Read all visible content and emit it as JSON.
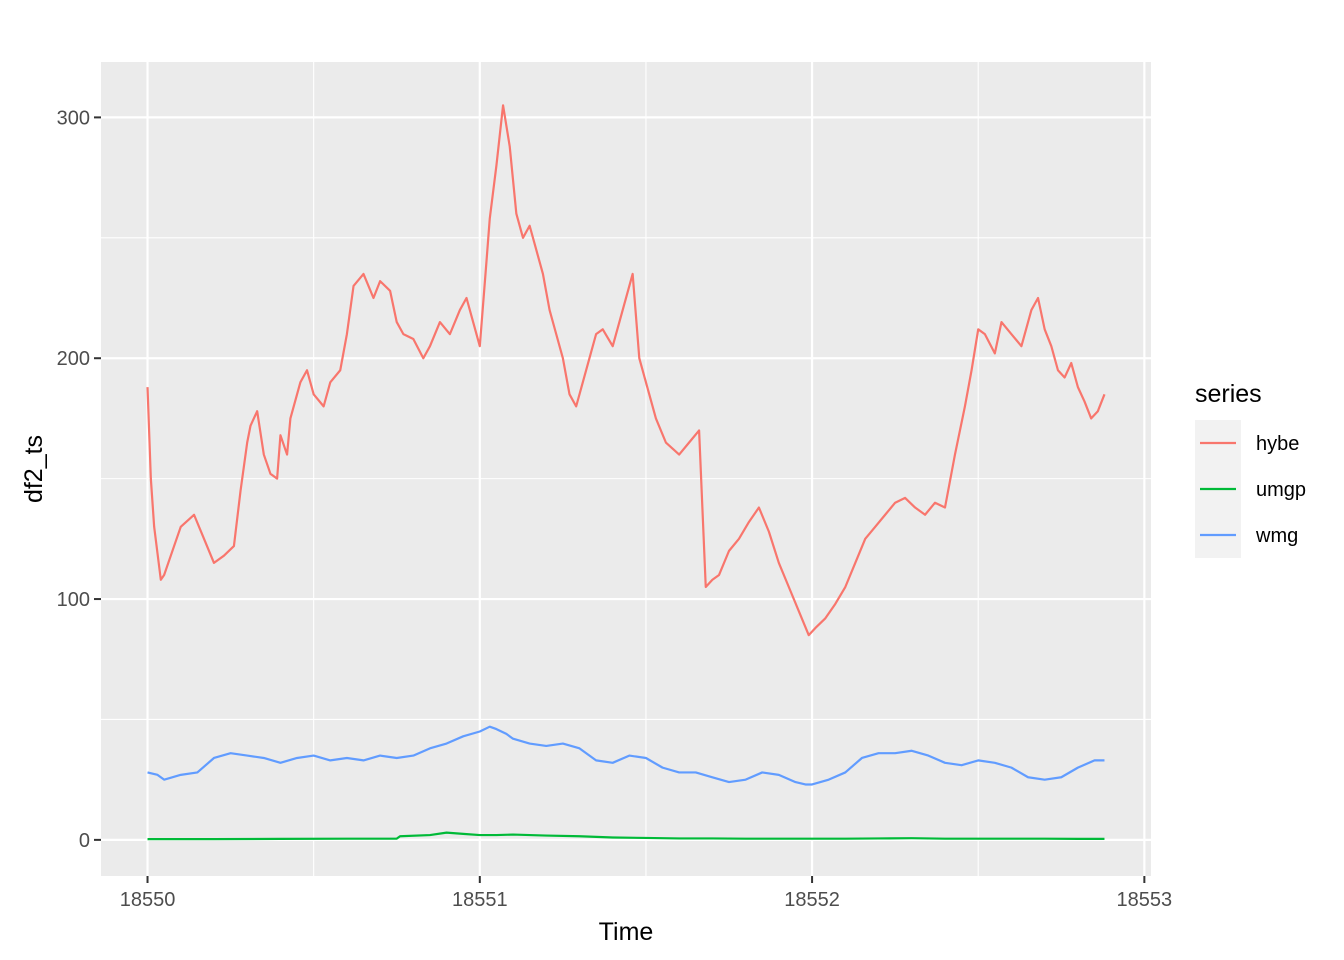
{
  "chart_data": {
    "type": "line",
    "xlabel": "Time",
    "ylabel": "df2_ts",
    "xlim": [
      18549.86,
      18553.02
    ],
    "ylim": [
      -15,
      323
    ],
    "x_ticks": [
      18550,
      18551,
      18552,
      18553
    ],
    "x_tick_labels": [
      "18550",
      "18551",
      "18552",
      "18553"
    ],
    "y_ticks": [
      0,
      100,
      200,
      300
    ],
    "y_tick_labels": [
      "0",
      "100",
      "200",
      "300"
    ],
    "grid": true,
    "legend": {
      "title": "series",
      "position": "right"
    },
    "series": [
      {
        "name": "hybe",
        "color": "#F8766D",
        "x": [
          18550.0,
          18550.01,
          18550.02,
          18550.04,
          18550.05,
          18550.08,
          18550.1,
          18550.14,
          18550.17,
          18550.2,
          18550.23,
          18550.26,
          18550.28,
          18550.3,
          18550.31,
          18550.33,
          18550.35,
          18550.37,
          18550.39,
          18550.4,
          18550.42,
          18550.43,
          18550.46,
          18550.48,
          18550.5,
          18550.53,
          18550.55,
          18550.58,
          18550.6,
          18550.62,
          18550.65,
          18550.68,
          18550.7,
          18550.73,
          18550.75,
          18550.77,
          18550.8,
          18550.83,
          18550.85,
          18550.88,
          18550.91,
          18550.94,
          18550.96,
          18550.98,
          18551.0,
          18551.02,
          18551.03,
          18551.05,
          18551.07,
          18551.09,
          18551.11,
          18551.13,
          18551.15,
          18551.17,
          18551.19,
          18551.21,
          18551.23,
          18551.25,
          18551.27,
          18551.29,
          18551.31,
          18551.33,
          18551.35,
          18551.37,
          18551.4,
          18551.43,
          18551.46,
          18551.48,
          18551.51,
          18551.53,
          18551.56,
          18551.6,
          18551.63,
          18551.66,
          18551.68,
          18551.7,
          18551.72,
          18551.75,
          18551.78,
          18551.81,
          18551.84,
          18551.87,
          18551.9,
          18551.93,
          18551.96,
          18551.99,
          18552.01,
          18552.04,
          18552.07,
          18552.1,
          18552.13,
          18552.16,
          18552.19,
          18552.22,
          18552.25,
          18552.28,
          18552.31,
          18552.34,
          18552.37,
          18552.4,
          18552.43,
          18552.46,
          18552.48,
          18552.5,
          18552.52,
          18552.55,
          18552.57,
          18552.6,
          18552.63,
          18552.66,
          18552.68,
          18552.7,
          18552.72,
          18552.74,
          18552.76,
          18552.78,
          18552.8,
          18552.82,
          18552.84,
          18552.86,
          18552.88
        ],
        "values": [
          188,
          150,
          130,
          108,
          110,
          122,
          130,
          135,
          125,
          115,
          118,
          122,
          145,
          165,
          172,
          178,
          160,
          152,
          150,
          168,
          160,
          175,
          190,
          195,
          185,
          180,
          190,
          195,
          210,
          230,
          235,
          225,
          232,
          228,
          215,
          210,
          208,
          200,
          205,
          215,
          210,
          220,
          225,
          215,
          205,
          240,
          258,
          280,
          305,
          288,
          260,
          250,
          255,
          245,
          235,
          220,
          210,
          200,
          185,
          180,
          190,
          200,
          210,
          212,
          205,
          220,
          235,
          200,
          185,
          175,
          165,
          160,
          165,
          170,
          105,
          108,
          110,
          120,
          125,
          132,
          138,
          128,
          115,
          105,
          95,
          85,
          88,
          92,
          98,
          105,
          115,
          125,
          130,
          135,
          140,
          142,
          138,
          135,
          140,
          138,
          160,
          180,
          195,
          212,
          210,
          202,
          215,
          210,
          205,
          220,
          225,
          212,
          205,
          195,
          192,
          198,
          188,
          182,
          175,
          178,
          185
        ]
      },
      {
        "name": "umgp",
        "color": "#00BA38",
        "x": [
          18550.0,
          18550.2,
          18550.4,
          18550.6,
          18550.75,
          18550.76,
          18550.85,
          18550.9,
          18550.95,
          18551.0,
          18551.05,
          18551.1,
          18551.2,
          18551.3,
          18551.4,
          18551.5,
          18551.6,
          18551.7,
          18551.8,
          18551.9,
          18552.0,
          18552.1,
          18552.2,
          18552.3,
          18552.4,
          18552.5,
          18552.6,
          18552.7,
          18552.8,
          18552.88
        ],
        "values": [
          0.3,
          0.3,
          0.4,
          0.5,
          0.5,
          1.5,
          2.0,
          3.0,
          2.5,
          2.0,
          2.0,
          2.2,
          1.8,
          1.5,
          1.0,
          0.8,
          0.6,
          0.6,
          0.5,
          0.5,
          0.5,
          0.5,
          0.6,
          0.7,
          0.5,
          0.5,
          0.5,
          0.5,
          0.4,
          0.4
        ]
      },
      {
        "name": "wmg",
        "color": "#619CFF",
        "x": [
          18550.0,
          18550.03,
          18550.05,
          18550.1,
          18550.15,
          18550.2,
          18550.25,
          18550.3,
          18550.35,
          18550.4,
          18550.45,
          18550.5,
          18550.55,
          18550.6,
          18550.65,
          18550.7,
          18550.75,
          18550.8,
          18550.85,
          18550.9,
          18550.95,
          18551.0,
          18551.03,
          18551.05,
          18551.08,
          18551.1,
          18551.15,
          18551.2,
          18551.25,
          18551.3,
          18551.35,
          18551.4,
          18551.45,
          18551.5,
          18551.55,
          18551.6,
          18551.65,
          18551.7,
          18551.75,
          18551.8,
          18551.85,
          18551.9,
          18551.95,
          18551.98,
          18552.0,
          18552.05,
          18552.1,
          18552.15,
          18552.2,
          18552.25,
          18552.3,
          18552.35,
          18552.4,
          18552.45,
          18552.5,
          18552.55,
          18552.6,
          18552.65,
          18552.7,
          18552.75,
          18552.8,
          18552.85,
          18552.88
        ],
        "values": [
          28,
          27,
          25,
          27,
          28,
          34,
          36,
          35,
          34,
          32,
          34,
          35,
          33,
          34,
          33,
          35,
          34,
          35,
          38,
          40,
          43,
          45,
          47,
          46,
          44,
          42,
          40,
          39,
          40,
          38,
          33,
          32,
          35,
          34,
          30,
          28,
          28,
          26,
          24,
          25,
          28,
          27,
          24,
          23,
          23,
          25,
          28,
          34,
          36,
          36,
          37,
          35,
          32,
          31,
          33,
          32,
          30,
          26,
          25,
          26,
          30,
          33,
          33
        ]
      }
    ]
  }
}
